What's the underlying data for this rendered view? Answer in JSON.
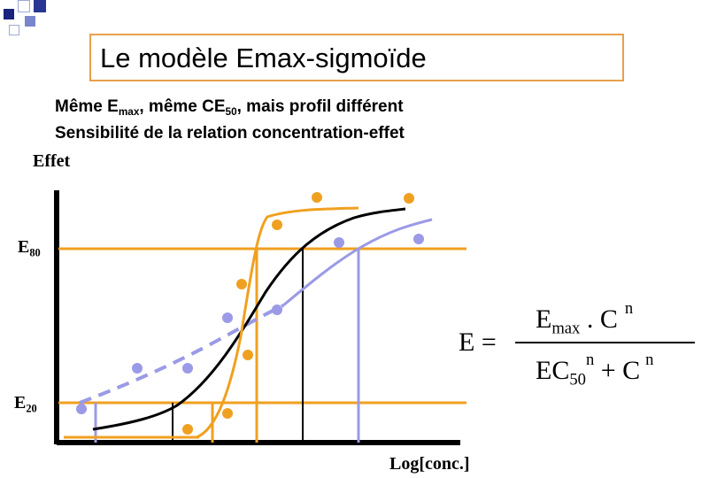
{
  "slide": {
    "title": "Le modèle Emax-sigmoïde",
    "subtitle1": {
      "pre": "Même E",
      "sub1": "max",
      "mid": ", même CE",
      "sub2": "50",
      "post": ", mais profil différent"
    },
    "subtitle2": "Sensibilité de la relation concentration-effet"
  },
  "chart": {
    "ylabel": "Effet",
    "xlabel": "Log[conc.]",
    "e80": {
      "main": "E",
      "sub": "80"
    },
    "e20": {
      "main": "E",
      "sub": "20"
    }
  },
  "formula": {
    "lhs": "E =",
    "num_main": "E",
    "num_sub": "max",
    "num_rest": " . C",
    "num_sup": "n",
    "den_main": "EC",
    "den_sub": "50",
    "den_sup": "n",
    "den_rest": " + C",
    "den_sup2": "n"
  },
  "colors": {
    "orange": "#f0a020",
    "black": "#000000",
    "lavender": "#9a9ae6",
    "title_border": "#e9a04a"
  }
}
